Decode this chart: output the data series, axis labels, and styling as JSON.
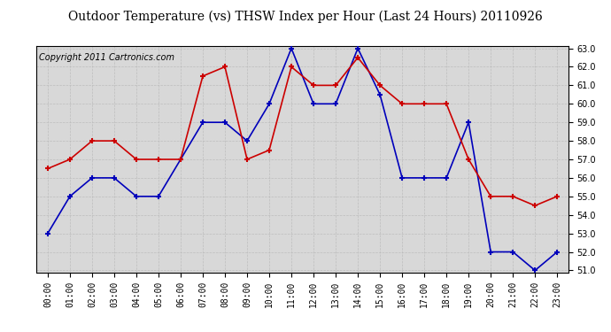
{
  "title": "Outdoor Temperature (vs) THSW Index per Hour (Last 24 Hours) 20110926",
  "copyright": "Copyright 2011 Cartronics.com",
  "hours": [
    "00:00",
    "01:00",
    "02:00",
    "03:00",
    "04:00",
    "05:00",
    "06:00",
    "07:00",
    "08:00",
    "09:00",
    "10:00",
    "11:00",
    "12:00",
    "13:00",
    "14:00",
    "15:00",
    "16:00",
    "17:00",
    "18:00",
    "19:00",
    "20:00",
    "21:00",
    "22:00",
    "23:00"
  ],
  "blue_data": [
    53.0,
    55.0,
    56.0,
    56.0,
    55.0,
    55.0,
    57.0,
    59.0,
    59.0,
    58.0,
    60.0,
    63.0,
    60.0,
    60.0,
    63.0,
    60.5,
    56.0,
    56.0,
    56.0,
    59.0,
    52.0,
    52.0,
    51.0,
    52.0
  ],
  "red_data": [
    56.5,
    57.0,
    58.0,
    58.0,
    57.0,
    57.0,
    57.0,
    61.5,
    62.0,
    57.0,
    57.5,
    62.0,
    61.0,
    61.0,
    62.5,
    61.0,
    60.0,
    60.0,
    60.0,
    57.0,
    55.0,
    55.0,
    54.5,
    55.0
  ],
  "ylim_min": 51.0,
  "ylim_max": 63.0,
  "yticks": [
    51.0,
    52.0,
    53.0,
    54.0,
    55.0,
    56.0,
    57.0,
    58.0,
    59.0,
    60.0,
    61.0,
    62.0,
    63.0
  ],
  "blue_color": "#0000bb",
  "red_color": "#cc0000",
  "plot_bg_color": "#d8d8d8",
  "fig_bg_color": "#ffffff",
  "grid_color": "#bbbbbb",
  "title_fontsize": 10,
  "copyright_fontsize": 7,
  "tick_fontsize": 7,
  "marker_size": 5,
  "line_width": 1.2
}
